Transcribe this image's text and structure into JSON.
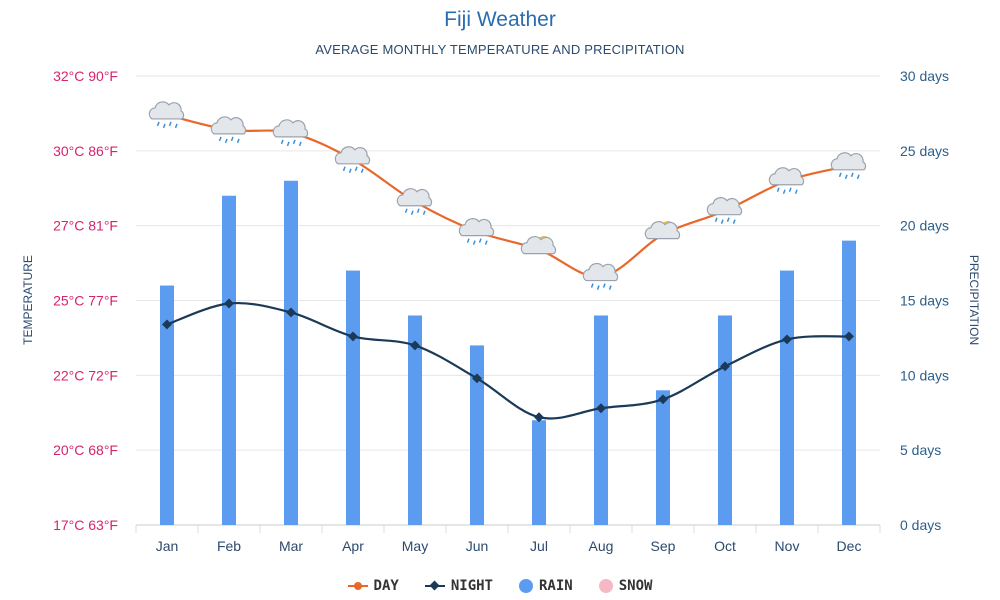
{
  "chart_data": {
    "type": "line+bar",
    "title": "Fiji Weather",
    "subtitle": "AVERAGE MONTHLY TEMPERATURE AND PRECIPITATION",
    "categories": [
      "Jan",
      "Feb",
      "Mar",
      "Apr",
      "May",
      "Jun",
      "Jul",
      "Aug",
      "Sep",
      "Oct",
      "Nov",
      "Dec"
    ],
    "left_axis": {
      "label": "TEMPERATURE",
      "ticks": [
        "17°C 63°F",
        "20°C 68°F",
        "22°C 72°F",
        "25°C 77°F",
        "27°C 81°F",
        "30°C 86°F",
        "32°C 90°F"
      ],
      "range": [
        17,
        32
      ],
      "color": "#d6246e"
    },
    "right_axis": {
      "label": "PRECIPITATION",
      "ticks": [
        "0 days",
        "5 days",
        "10 days",
        "15 days",
        "20 days",
        "25 days",
        "30 days"
      ],
      "range": [
        0,
        30
      ],
      "color": "#2c5f8a"
    },
    "series": [
      {
        "name": "DAY",
        "kind": "line",
        "axis": "temperature",
        "color": "#e8682a",
        "values": [
          30.7,
          30.2,
          30.1,
          29.2,
          27.8,
          26.8,
          26.2,
          25.3,
          26.7,
          27.5,
          28.5,
          29.0
        ]
      },
      {
        "name": "NIGHT",
        "kind": "line",
        "axis": "temperature",
        "color": "#1b3a57",
        "values": [
          23.7,
          24.4,
          24.1,
          23.3,
          23.0,
          21.9,
          20.6,
          20.9,
          21.2,
          22.3,
          23.2,
          23.3
        ]
      },
      {
        "name": "RAIN",
        "kind": "bar",
        "axis": "precipitation",
        "color": "#5b9cf0",
        "values": [
          16,
          22,
          23,
          17,
          14,
          12,
          7,
          14,
          9,
          14,
          17,
          19
        ]
      },
      {
        "name": "SNOW",
        "kind": "bar",
        "axis": "precipitation",
        "color": "#f7b8c6",
        "values": [
          0,
          0,
          0,
          0,
          0,
          0,
          0,
          0,
          0,
          0,
          0,
          0
        ]
      }
    ],
    "weather_icons": [
      "rain-cloud",
      "rain-cloud",
      "rain-cloud",
      "rain-cloud",
      "rain-cloud",
      "rain-cloud",
      "sun-cloud",
      "rain-cloud",
      "sun-cloud",
      "rain-cloud",
      "rain-cloud",
      "rain-cloud"
    ],
    "grid": true,
    "legend_position": "bottom-center"
  }
}
